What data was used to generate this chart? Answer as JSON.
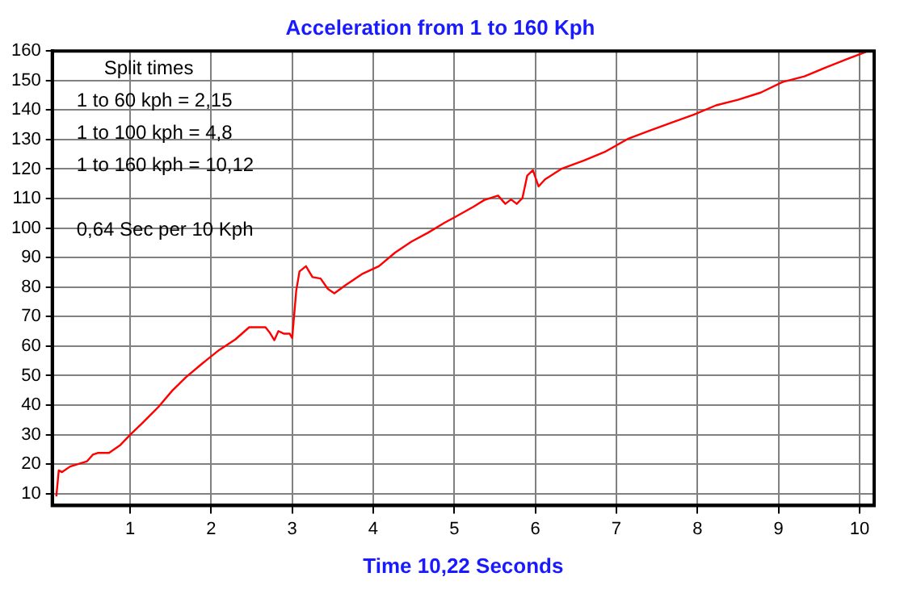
{
  "chart_data": {
    "type": "line",
    "title": "Acceleration from 1 to 160 Kph",
    "xlabel": "Time 10,22 Seconds",
    "annotations": [
      "Split times",
      "1 to 60 kph = 2,15",
      "1 to 100 kph = 4,8",
      "1 to 160 kph = 10,12",
      "0,64 Sec per 10 Kph"
    ],
    "x": [
      0.09,
      0.12,
      0.16,
      0.26,
      0.47,
      0.54,
      0.6,
      0.74,
      0.88,
      1.01,
      1.15,
      1.35,
      1.52,
      1.69,
      1.89,
      2.1,
      2.3,
      2.47,
      2.67,
      2.72,
      2.78,
      2.83,
      2.9,
      2.97,
      3.0,
      3.05,
      3.09,
      3.17,
      3.25,
      3.35,
      3.44,
      3.52,
      3.66,
      3.86,
      4.07,
      4.27,
      4.47,
      4.68,
      4.88,
      5.0,
      5.24,
      5.37,
      5.54,
      5.63,
      5.7,
      5.77,
      5.84,
      5.9,
      5.97,
      6.04,
      6.12,
      6.33,
      6.6,
      6.87,
      7.14,
      7.41,
      7.69,
      7.96,
      8.23,
      8.5,
      8.78,
      9.05,
      9.32,
      9.59,
      9.86,
      10.07,
      10.1
    ],
    "series": [
      {
        "color": "#ff0000",
        "values": [
          9.1,
          17.9,
          17.3,
          19.2,
          21,
          23.2,
          23.8,
          23.8,
          26.5,
          30.2,
          33.9,
          39.4,
          44.9,
          49.5,
          54.1,
          58.7,
          62.3,
          66.4,
          66.4,
          64.7,
          62,
          65.1,
          64.2,
          64.2,
          62.7,
          78.8,
          85.3,
          87.1,
          83.4,
          82.9,
          79.4,
          77.9,
          80.7,
          84.4,
          87.1,
          91.7,
          95.4,
          98.5,
          101.8,
          103.6,
          107.3,
          109.5,
          111,
          108.2,
          109.7,
          108.2,
          110.1,
          117.8,
          119.6,
          114.1,
          116.5,
          120.2,
          122.9,
          126,
          130.2,
          133,
          135.8,
          138.5,
          141.6,
          143.5,
          145.9,
          149.5,
          151.4,
          154.5,
          157.4,
          159.6,
          160
        ]
      }
    ],
    "xlim": [
      0.04,
      10.18
    ],
    "xticks": [
      1,
      2,
      3,
      4,
      5,
      6,
      7,
      8,
      9,
      10
    ],
    "ylim": [
      6,
      160
    ],
    "yticks": [
      10,
      20,
      30,
      40,
      50,
      60,
      70,
      80,
      90,
      100,
      110,
      120,
      130,
      140,
      150,
      160
    ],
    "grid": true,
    "legend": false,
    "marker": "none",
    "line_style": "solid"
  }
}
